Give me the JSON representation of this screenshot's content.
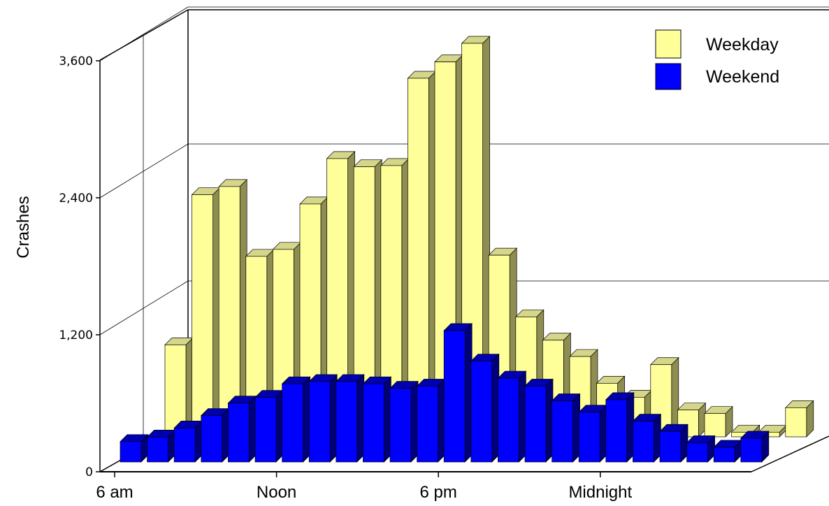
{
  "chart_data": {
    "type": "bar",
    "subtype": "3d-clustered-depth",
    "title": "",
    "xlabel": "",
    "ylabel": "Crashes",
    "ylim": [
      0,
      4200
    ],
    "yticks": [
      0,
      1200,
      2400,
      3600
    ],
    "ytick_labels": [
      "0",
      "1,200",
      "2,400",
      "3,600"
    ],
    "x_tick_labels": [
      "6 am",
      "Noon",
      "6 pm",
      "Midnight"
    ],
    "x_tick_hours": [
      0,
      6,
      12,
      18
    ],
    "hours": [
      0,
      1,
      2,
      3,
      4,
      5,
      6,
      7,
      8,
      9,
      10,
      11,
      12,
      13,
      14,
      15,
      16,
      17,
      18,
      19,
      20,
      21,
      22,
      23
    ],
    "grid": true,
    "legend_position": "top-right",
    "series": [
      {
        "name": "Weekday",
        "color": "#ffff99",
        "side_color": "#8e8e52",
        "top_color": "#d6d68a",
        "values": [
          790,
          2080,
          2150,
          1550,
          1610,
          2000,
          2390,
          2320,
          2330,
          3080,
          3220,
          3380,
          1560,
          1030,
          830,
          690,
          460,
          340,
          620,
          230,
          200,
          40,
          40,
          250
        ]
      },
      {
        "name": "Weekend",
        "color": "#0000ff",
        "side_color": "#00007a",
        "top_color": "#0000b0",
        "values": [
          180,
          220,
          300,
          410,
          520,
          570,
          690,
          710,
          710,
          690,
          650,
          670,
          1160,
          890,
          740,
          670,
          540,
          440,
          550,
          360,
          270,
          170,
          130,
          210
        ]
      }
    ]
  }
}
